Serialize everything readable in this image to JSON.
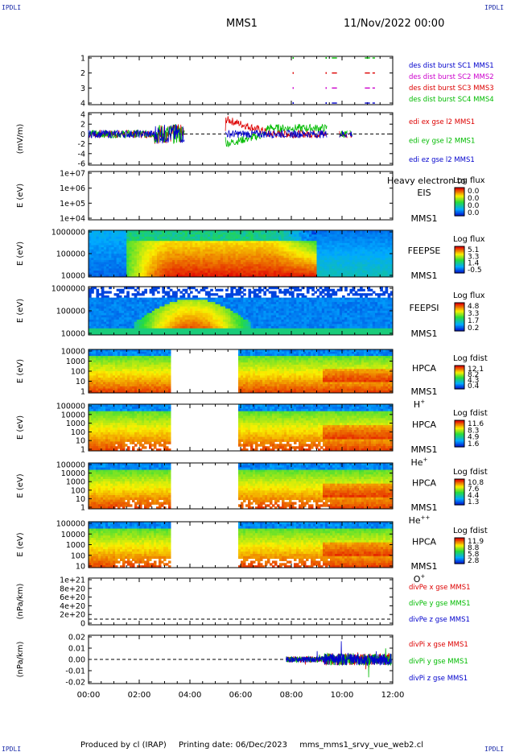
{
  "corner_label": "IPDLI",
  "header": {
    "mission": "MMS1",
    "date": "11/Nov/2022 00:00"
  },
  "footer": {
    "producer": "Produced by cl (IRAP)",
    "printing": "Printing date: 06/Dec/2023",
    "script": "mms_mms1_srvy_vue_web2.cl"
  },
  "x_axis_ticks": [
    "00:00",
    "02:00",
    "04:00",
    "06:00",
    "08:00",
    "10:00",
    "12:00"
  ],
  "chart_data": [
    {
      "type": "scatter",
      "panel": "des_dist_burst",
      "yticks": [
        "1",
        "2",
        "3",
        "4"
      ],
      "series": [
        {
          "name": "des dist burst SC1 MMS1",
          "color": "#0000cc"
        },
        {
          "name": "des dist burst SC2 MMS2",
          "color": "#cc00cc"
        },
        {
          "name": "des dist burst SC3 MMS3",
          "color": "#dd0000"
        },
        {
          "name": "des dist burst SC4 MMS4",
          "color": "#00bb00"
        }
      ]
    },
    {
      "type": "line",
      "panel": "edi_e_gse",
      "ylabel": "(mV/m)",
      "yticks": [
        "4",
        "2",
        "0",
        "-2",
        "-4",
        "-6"
      ],
      "series": [
        {
          "name": "edi ex gse l2 MMS1",
          "color": "#dd0000"
        },
        {
          "name": "edi ey gse l2 MMS1",
          "color": "#00bb00"
        },
        {
          "name": "edi ez gse l2 MMS1",
          "color": "#0000cc"
        }
      ]
    },
    {
      "type": "heatmap",
      "panel": "EIS",
      "ylabel": "E (eV)",
      "yticks": [
        "1e+07",
        "1e+06",
        "1e+05",
        "1e+04"
      ],
      "inst": "EIS",
      "sub": "MMS1",
      "overlay": "Heavy electron to",
      "cb_title": "Log flux",
      "cb_ticks": [
        "0.0",
        "0.0",
        "0.0",
        "0.0"
      ]
    },
    {
      "type": "heatmap",
      "panel": "FEEPSE",
      "ylabel": "E (eV)",
      "yticks": [
        "1000000",
        "100000",
        "10000"
      ],
      "inst": "FEEPSE",
      "sub": "MMS1",
      "cb_title": "Log flux",
      "cb_ticks": [
        "5.1",
        "3.3",
        "1.4",
        "-0.5"
      ]
    },
    {
      "type": "heatmap",
      "panel": "FEEPSI",
      "ylabel": "E (eV)",
      "yticks": [
        "1000000",
        "100000",
        "10000"
      ],
      "inst": "FEEPSI",
      "sub": "MMS1",
      "cb_title": "Log flux",
      "cb_ticks": [
        "4.8",
        "3.3",
        "1.7",
        "0.2"
      ]
    },
    {
      "type": "heatmap",
      "panel": "HPCA_H",
      "ylabel": "E (eV)",
      "yticks": [
        "10000",
        "1000",
        "100",
        "10",
        "1"
      ],
      "inst": "HPCA",
      "sub": "MMS1",
      "species": "H",
      "sup": "+",
      "cb_title": "Log fdist",
      "cb_ticks": [
        "12.1",
        "8.2",
        "4.3",
        "0.4"
      ]
    },
    {
      "type": "heatmap",
      "panel": "HPCA_He",
      "ylabel": "E (eV)",
      "yticks": [
        "100000",
        "10000",
        "1000",
        "100",
        "10",
        "1"
      ],
      "inst": "HPCA",
      "sub": "MMS1",
      "species": "He",
      "sup": "+",
      "cb_title": "Log fdist",
      "cb_ticks": [
        "11.6",
        "8.3",
        "4.9",
        "1.6"
      ]
    },
    {
      "type": "heatmap",
      "panel": "HPCA_He2",
      "ylabel": "E (eV)",
      "yticks": [
        "100000",
        "10000",
        "1000",
        "100",
        "10",
        "1"
      ],
      "inst": "HPCA",
      "sub": "MMS1",
      "species": "He",
      "sup": "++",
      "cb_title": "Log fdist",
      "cb_ticks": [
        "10.8",
        "7.6",
        "4.4",
        "1.3"
      ]
    },
    {
      "type": "heatmap",
      "panel": "HPCA_O",
      "ylabel": "E (eV)",
      "yticks": [
        "100000",
        "10000",
        "1000",
        "100",
        "10"
      ],
      "inst": "HPCA",
      "sub": "MMS1",
      "species": "O",
      "sup": "+",
      "cb_title": "Log fdist",
      "cb_ticks": [
        "11.9",
        "8.8",
        "5.8",
        "2.8"
      ]
    },
    {
      "type": "line",
      "panel": "divPe",
      "ylabel": "(nPa/km)",
      "yticks": [
        "1e+21",
        "8e+20",
        "6e+20",
        "4e+20",
        "2e+20",
        "0"
      ],
      "series": [
        {
          "name": "divPe x gse MMS1",
          "color": "#dd0000"
        },
        {
          "name": "divPe y gse MMS1",
          "color": "#00bb00"
        },
        {
          "name": "divPe z gse MMS1",
          "color": "#0000cc"
        }
      ]
    },
    {
      "type": "line",
      "panel": "divPi",
      "ylabel": "(nPa/km)",
      "yticks": [
        "0.02",
        "0.01",
        "0.00",
        "-0.01",
        "-0.02"
      ],
      "series": [
        {
          "name": "divPi x gse MMS1",
          "color": "#dd0000"
        },
        {
          "name": "divPi y gse MMS1",
          "color": "#00bb00"
        },
        {
          "name": "divPi z gse MMS1",
          "color": "#0000cc"
        }
      ]
    }
  ]
}
